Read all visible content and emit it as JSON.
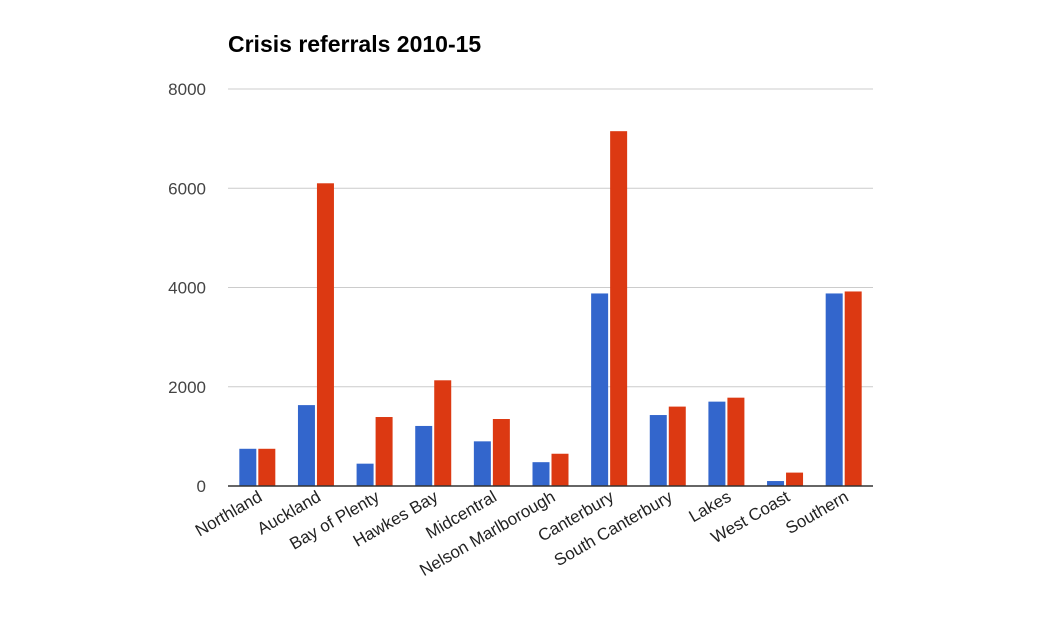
{
  "chart_data": {
    "type": "bar",
    "title": "Crisis referrals 2010-15",
    "xlabel": "",
    "ylabel": "",
    "ylim": [
      0,
      8000
    ],
    "yticks": [
      0,
      2000,
      4000,
      6000,
      8000
    ],
    "grid": true,
    "legend": "none",
    "categories": [
      "Northland",
      "Auckland",
      "Bay of Plenty",
      "Hawkes Bay",
      "Midcentral",
      "Nelson Marlborough",
      "Canterbury",
      "South Canterbury",
      "Lakes",
      "West Coast",
      "Southern"
    ],
    "series": [
      {
        "color": "#3366cc",
        "values": [
          750,
          1630,
          450,
          1210,
          900,
          480,
          3880,
          1430,
          1700,
          100,
          3880
        ]
      },
      {
        "color": "#dc3912",
        "values": [
          750,
          6100,
          1390,
          2130,
          1350,
          650,
          7150,
          1600,
          1780,
          270,
          3920
        ]
      }
    ]
  }
}
